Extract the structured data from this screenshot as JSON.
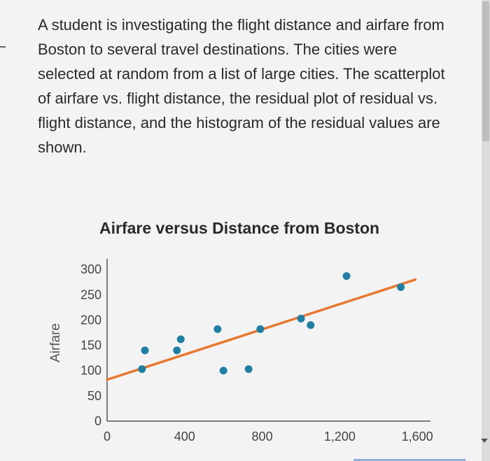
{
  "question": {
    "text": "A student is investigating the flight distance and airfare from Boston to several travel destinations. The cities were selected at random from a list of large cities. The scatterplot of airfare vs. flight distance, the residual plot of residual vs. flight distance, and the histogram of the residual values are shown."
  },
  "chart_data": {
    "type": "scatter",
    "title": "Airfare versus Distance from Boston",
    "xlabel": "",
    "ylabel": "Airfare",
    "xlim": [
      0,
      1650
    ],
    "ylim": [
      0,
      310
    ],
    "x_ticks": [
      0,
      400,
      800,
      1200,
      1600
    ],
    "x_tick_labels": [
      "0",
      "400",
      "800",
      "1,200",
      "1,600"
    ],
    "y_ticks": [
      0,
      50,
      100,
      150,
      200,
      250,
      300
    ],
    "y_tick_labels": [
      "0",
      "50",
      "100",
      "150",
      "200",
      "250",
      "300"
    ],
    "grid": false,
    "colors": {
      "points": "#1f7fa3",
      "line": "#e8772e",
      "axis": "#555555"
    },
    "points": [
      {
        "x": 180,
        "y": 103
      },
      {
        "x": 195,
        "y": 140
      },
      {
        "x": 360,
        "y": 140
      },
      {
        "x": 380,
        "y": 162
      },
      {
        "x": 570,
        "y": 182
      },
      {
        "x": 600,
        "y": 100
      },
      {
        "x": 730,
        "y": 103
      },
      {
        "x": 790,
        "y": 182
      },
      {
        "x": 1000,
        "y": 203
      },
      {
        "x": 1050,
        "y": 190
      },
      {
        "x": 1235,
        "y": 287
      },
      {
        "x": 1515,
        "y": 265
      }
    ],
    "regression_line": {
      "x": [
        0,
        1590
      ],
      "y": [
        82,
        280
      ]
    }
  }
}
